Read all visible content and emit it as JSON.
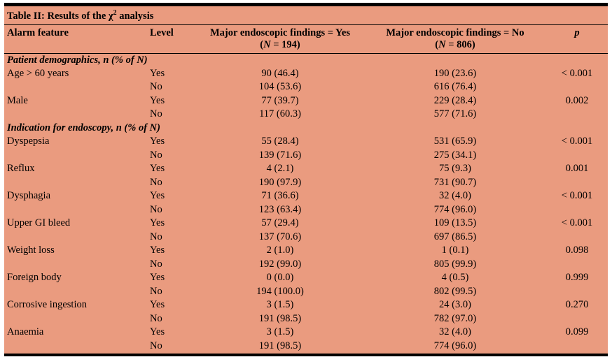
{
  "table": {
    "title_parts": [
      "Table II: Results of the χ",
      "2",
      " analysis"
    ],
    "headers": {
      "feature": "Alarm feature",
      "level": "Level",
      "yes": {
        "main": "Major endoscopic findings = Yes",
        "sub": [
          "(",
          "N",
          " = 194)"
        ]
      },
      "no": {
        "main": "Major endoscopic findings = No",
        "sub": [
          "(",
          "N",
          " = 806)"
        ]
      },
      "p": "p"
    },
    "sections": [
      {
        "label": "Patient demographics, n (% of N)",
        "rows": [
          {
            "feature": "Age > 60 years",
            "level": "Yes",
            "yes": "90 (46.4)",
            "no": "190 (23.6)",
            "p": "< 0.001"
          },
          {
            "feature": "",
            "level": "No",
            "yes": "104 (53.6)",
            "no": "616 (76.4)",
            "p": ""
          },
          {
            "feature": "Male",
            "level": "Yes",
            "yes": "77 (39.7)",
            "no": "229 (28.4)",
            "p": "0.002"
          },
          {
            "feature": "",
            "level": "No",
            "yes": "117 (60.3)",
            "no": "577 (71.6)",
            "p": ""
          }
        ]
      },
      {
        "label": "Indication for endoscopy, n (% of N)",
        "rows": [
          {
            "feature": "Dyspepsia",
            "level": "Yes",
            "yes": "55 (28.4)",
            "no": "531 (65.9)",
            "p": "< 0.001"
          },
          {
            "feature": "",
            "level": "No",
            "yes": "139 (71.6)",
            "no": "275 (34.1)",
            "p": ""
          },
          {
            "feature": "Reflux",
            "level": "Yes",
            "yes": "4 (2.1)",
            "no": "75 (9.3)",
            "p": "0.001"
          },
          {
            "feature": "",
            "level": "No",
            "yes": "190 (97.9)",
            "no": "731 (90.7)",
            "p": ""
          },
          {
            "feature": "Dysphagia",
            "level": "Yes",
            "yes": "71 (36.6)",
            "no": "32 (4.0)",
            "p": "< 0.001"
          },
          {
            "feature": "",
            "level": "No",
            "yes": "123 (63.4)",
            "no": "774 (96.0)",
            "p": ""
          },
          {
            "feature": "Upper GI bleed",
            "level": "Yes",
            "yes": "57 (29.4)",
            "no": "109 (13.5)",
            "p": "< 0.001"
          },
          {
            "feature": "",
            "level": "No",
            "yes": "137 (70.6)",
            "no": "697 (86.5)",
            "p": ""
          },
          {
            "feature": "Weight loss",
            "level": "Yes",
            "yes": "2 (1.0)",
            "no": "1 (0.1)",
            "p": "0.098"
          },
          {
            "feature": "",
            "level": "No",
            "yes": "192 (99.0)",
            "no": "805 (99.9)",
            "p": ""
          },
          {
            "feature": "Foreign body",
            "level": "Yes",
            "yes": "0 (0.0)",
            "no": "4 (0.5)",
            "p": "0.999"
          },
          {
            "feature": "",
            "level": "No",
            "yes": "194 (100.0)",
            "no": "802 (99.5)",
            "p": ""
          },
          {
            "feature": "Corrosive ingestion",
            "level": "Yes",
            "yes": "3 (1.5)",
            "no": "24 (3.0)",
            "p": "0.270"
          },
          {
            "feature": "",
            "level": "No",
            "yes": "191 (98.5)",
            "no": "782 (97.0)",
            "p": ""
          },
          {
            "feature": "Anaemia",
            "level": "Yes",
            "yes": "3 (1.5)",
            "no": "32 (4.0)",
            "p": "0.099"
          },
          {
            "feature": "",
            "level": "No",
            "yes": "191 (98.5)",
            "no": "774 (96.0)",
            "p": ""
          }
        ]
      }
    ],
    "colors": {
      "background": "#EA9B7F",
      "rule": "#000000",
      "text": "#000000"
    }
  }
}
